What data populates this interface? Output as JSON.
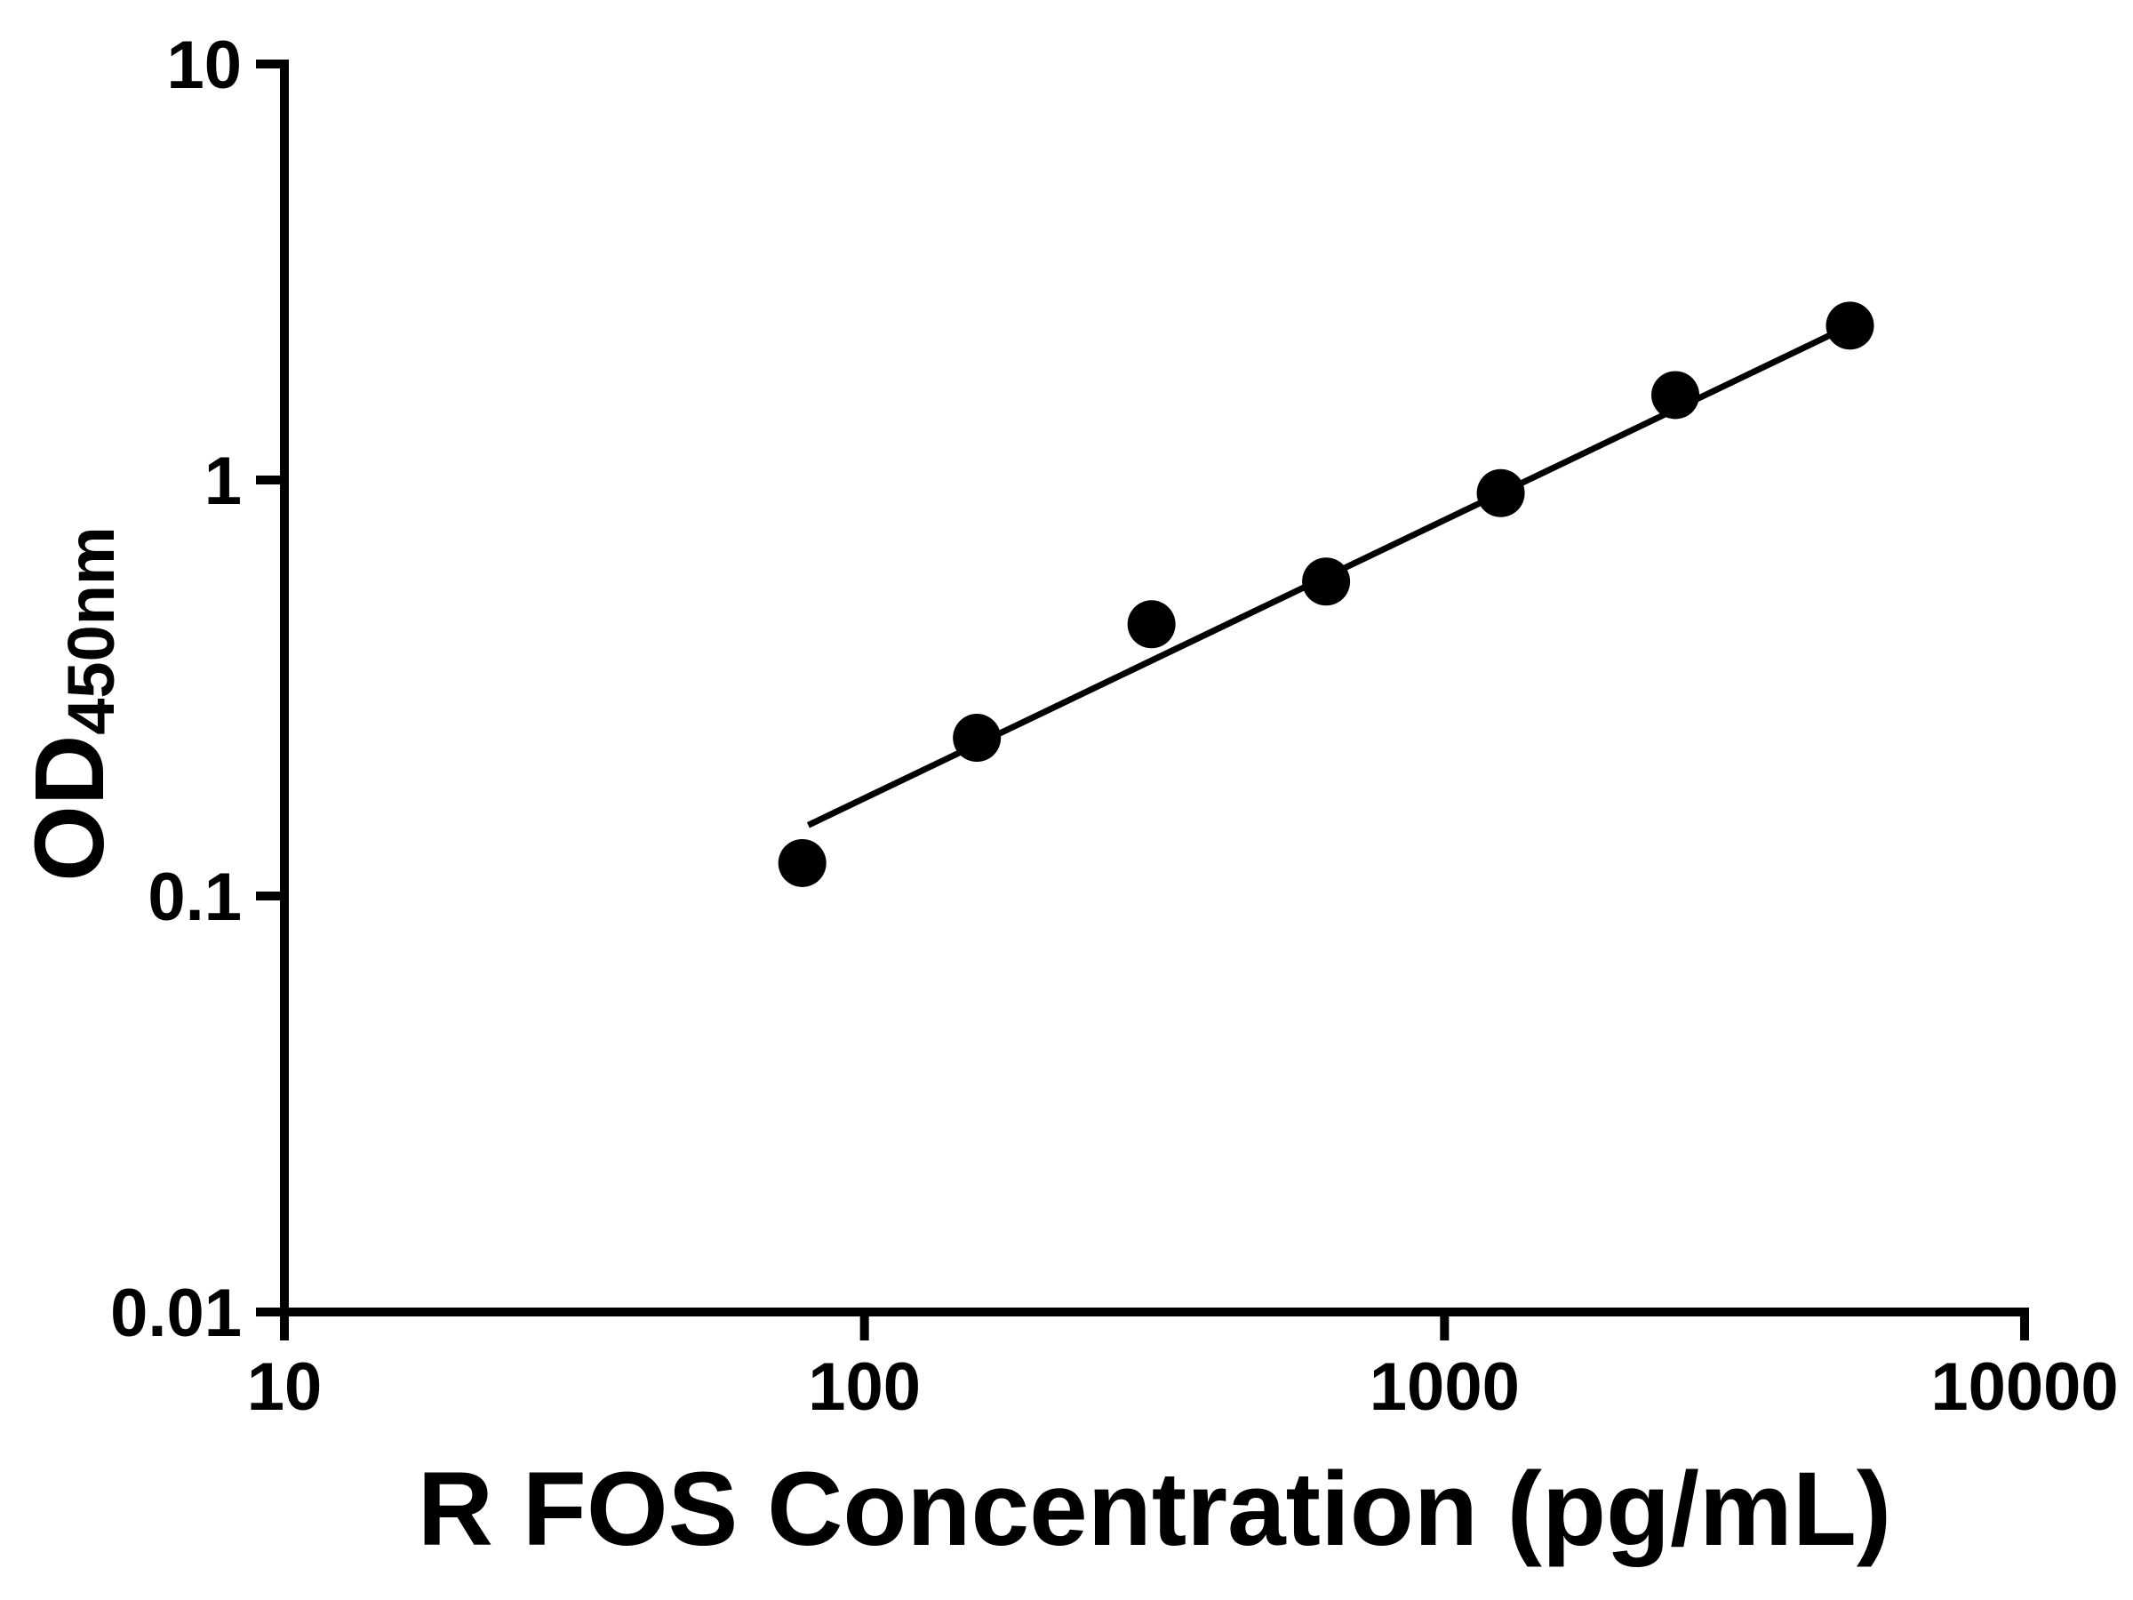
{
  "chart_data": {
    "type": "scatter",
    "title": "",
    "xlabel": "R FOS Concentration (pg/mL)",
    "ylabel_main": "OD",
    "ylabel_sub": "450nm",
    "xscale": "log",
    "yscale": "log",
    "xlim": [
      10,
      10000
    ],
    "ylim": [
      0.01,
      10
    ],
    "x_ticks": [
      10,
      100,
      1000,
      10000
    ],
    "x_tick_labels": [
      "10",
      "100",
      "1000",
      "10000"
    ],
    "y_ticks": [
      0.01,
      0.1,
      1,
      10
    ],
    "y_tick_labels": [
      "0.01",
      "0.1",
      "1",
      "10"
    ],
    "x": [
      78.125,
      156.25,
      312.5,
      625,
      1250,
      2500,
      5000
    ],
    "y": [
      0.12,
      0.24,
      0.45,
      0.57,
      0.93,
      1.6,
      2.35
    ],
    "trendline": {
      "x1": 80,
      "y1": 0.148,
      "x2": 5000,
      "y2": 2.35
    },
    "grid": false,
    "legend": "none",
    "marker_color": "#000000",
    "line_color": "#000000",
    "axis_color": "#000000"
  }
}
